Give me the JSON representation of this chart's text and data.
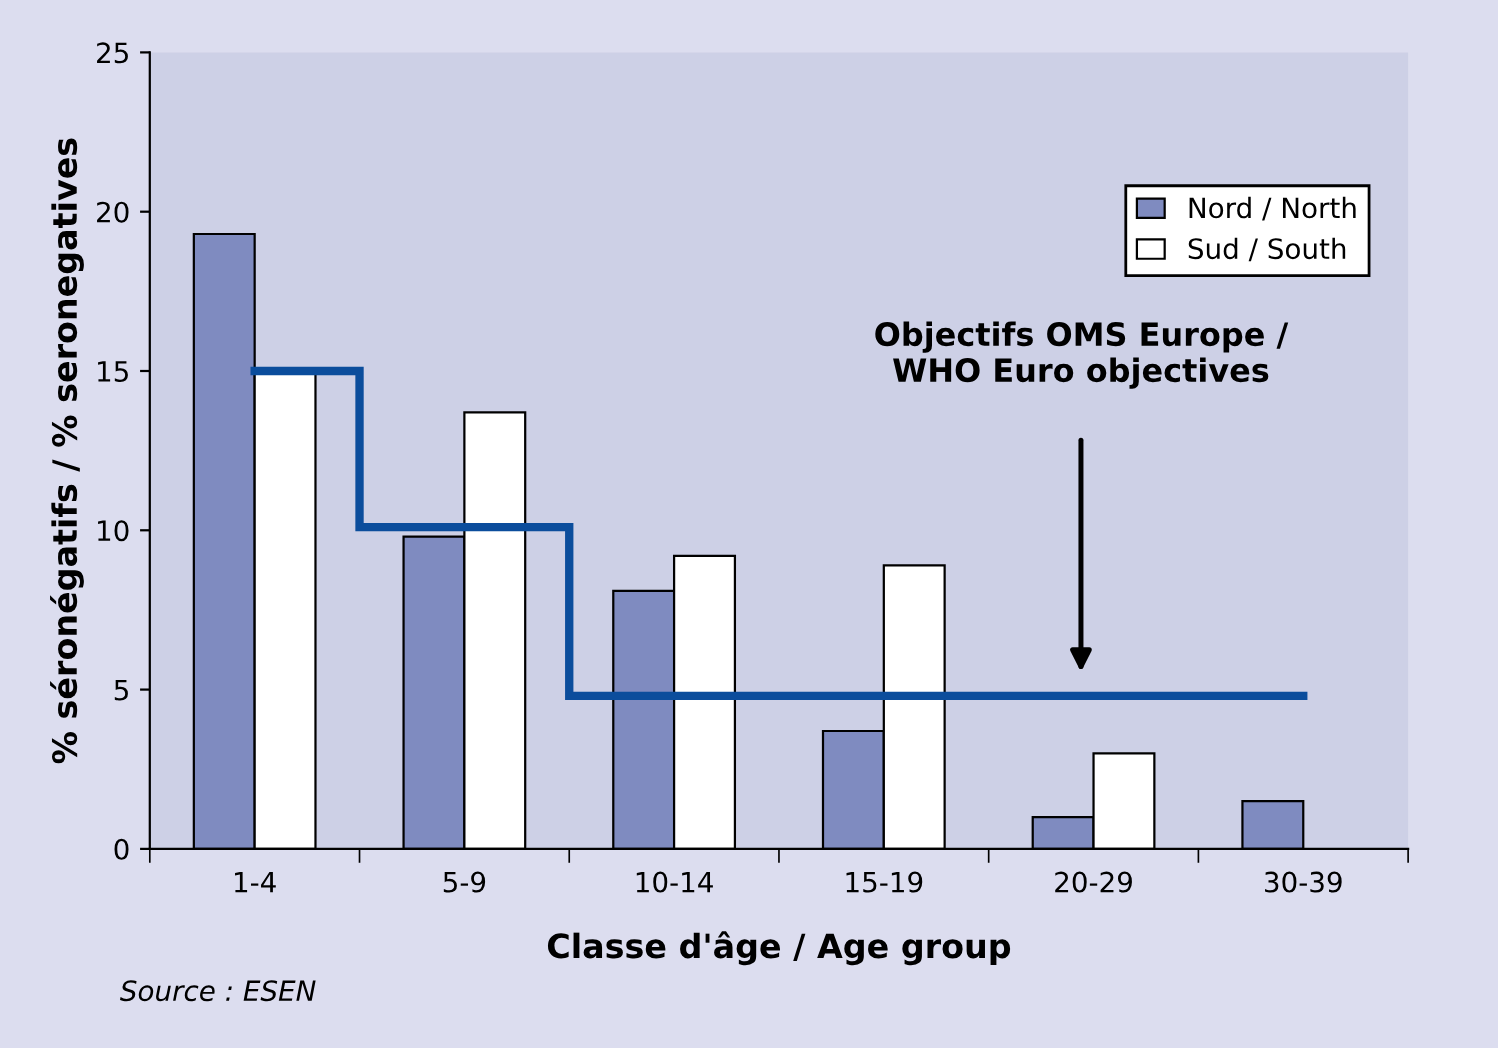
{
  "chart_data": {
    "type": "bar",
    "xlabel": "Classe d'âge / Age group",
    "ylabel": "% séronégatifs / % seronegatives",
    "categories": [
      "1-4",
      "5-9",
      "10-14",
      "15-19",
      "20-29",
      "30-39"
    ],
    "series": [
      {
        "name": "Nord / North",
        "color": "#7f8bc0",
        "values": [
          19.3,
          9.8,
          8.1,
          3.7,
          1.0,
          1.5
        ]
      },
      {
        "name": "Sud / South",
        "color": "#ffffff",
        "values": [
          15.0,
          13.7,
          9.2,
          8.9,
          3.0,
          null
        ]
      },
      {
        "type": "step",
        "color": "#0b4d9c",
        "values": [
          15.0,
          10.1,
          4.8,
          4.8,
          4.8,
          4.8
        ]
      }
    ],
    "ylim": [
      0,
      25
    ],
    "yticks": [
      0,
      5,
      10,
      15,
      20,
      25
    ],
    "grid": false,
    "legend": "top right",
    "annotations": [
      "Objectifs OMS Europe /\nWHO Euro objectives",
      "Source : ESEN"
    ]
  }
}
